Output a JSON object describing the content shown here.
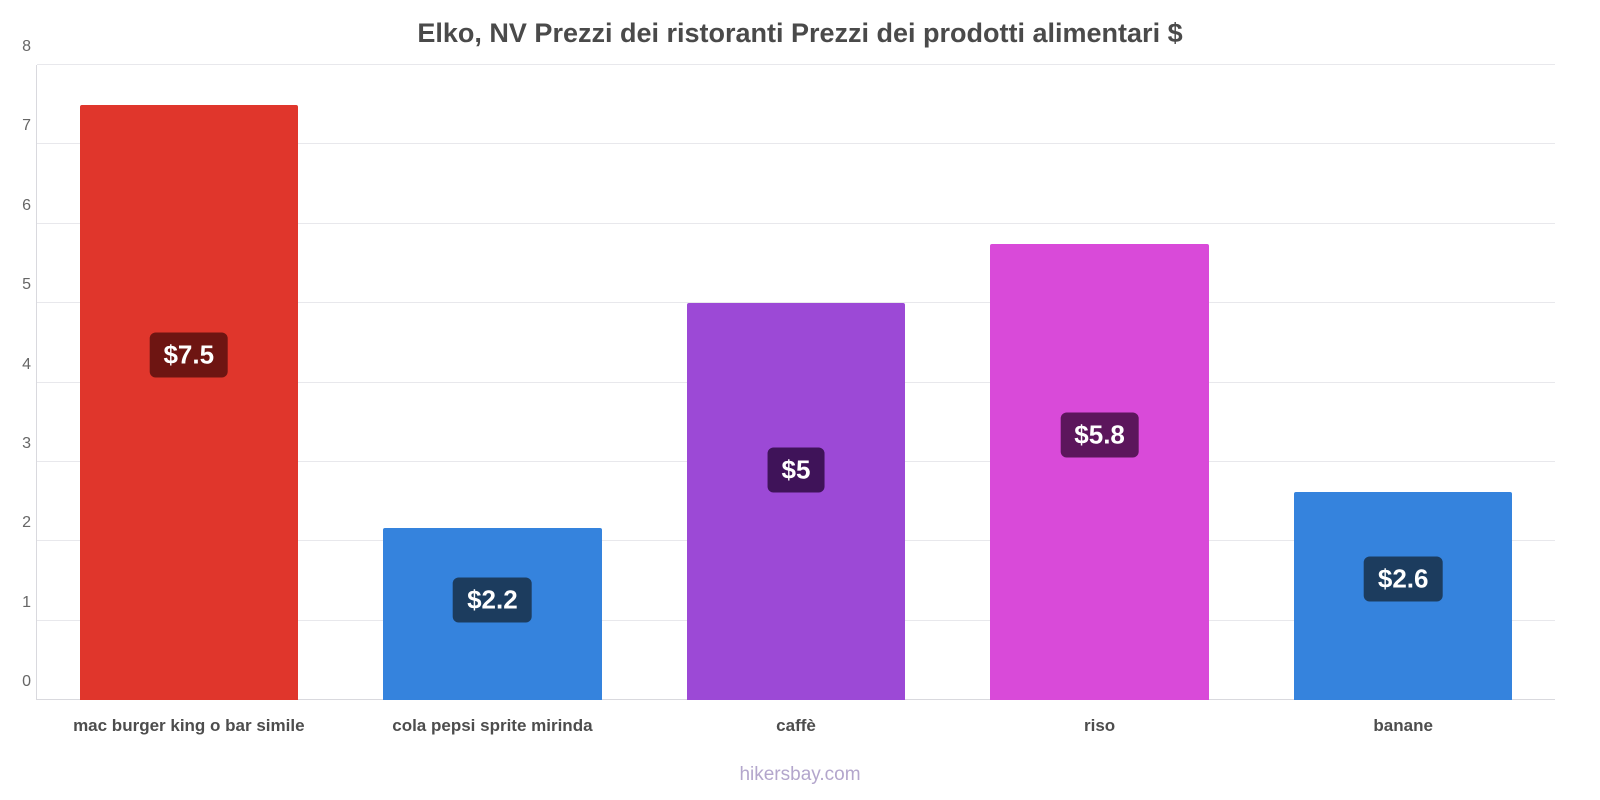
{
  "title": "Elko, NV Prezzi dei ristoranti Prezzi dei prodotti alimentari $",
  "footer": "hikersbay.com",
  "chart_data": {
    "type": "bar",
    "title": "Elko, NV Prezzi dei ristoranti Prezzi dei prodotti alimentari $",
    "xlabel": "",
    "ylabel": "",
    "ylim": [
      0,
      8
    ],
    "yticks": [
      0,
      1,
      2,
      3,
      4,
      5,
      6,
      7,
      8
    ],
    "grid": true,
    "legend": false,
    "categories": [
      "mac burger king o bar simile",
      "cola pepsi sprite mirinda",
      "caffè",
      "riso",
      "banane"
    ],
    "values": [
      7.5,
      2.17,
      5,
      5.75,
      2.62
    ],
    "data_labels": [
      "$7.5",
      "$2.2",
      "$5",
      "$5.8",
      "$2.6"
    ],
    "bar_colors": [
      "#e0362c",
      "#3583dd",
      "#9c49d6",
      "#d94ad9",
      "#3583dd"
    ],
    "label_chip_colors": [
      "#6e1512",
      "#1c3c5e",
      "#3f1359",
      "#5c165c",
      "#1c3c5e"
    ],
    "label_chip_position": 0.58
  }
}
